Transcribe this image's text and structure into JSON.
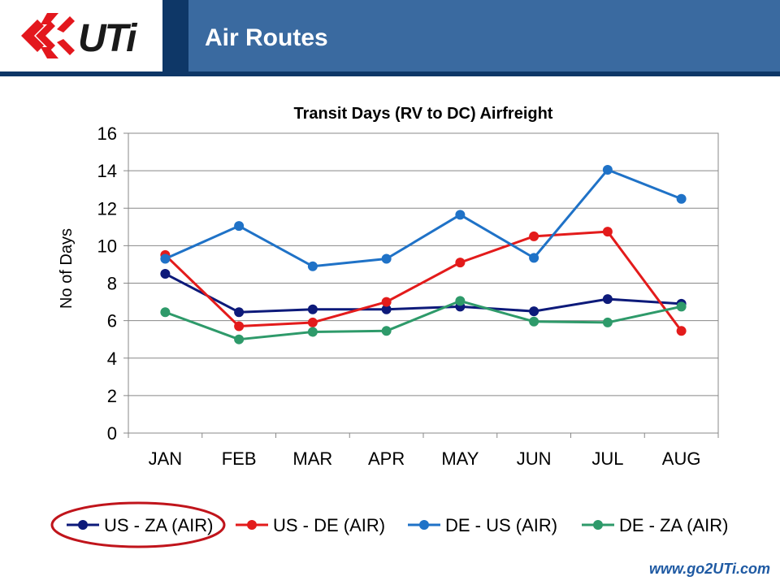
{
  "header": {
    "title": "Air Routes",
    "logo_text": "UTi",
    "colors": {
      "bar": "#3a6aa0",
      "dark": "#0e3767",
      "logo_red": "#e3171d"
    }
  },
  "footer": {
    "url": "www.go2UTi.com"
  },
  "chart_data": {
    "type": "line",
    "title": "Transit Days (RV to DC) Airfreight",
    "xlabel": "",
    "ylabel": "No of Days",
    "categories": [
      "JAN",
      "FEB",
      "MAR",
      "APR",
      "MAY",
      "JUN",
      "JUL",
      "AUG"
    ],
    "ylim": [
      0,
      16
    ],
    "yticks": [
      0,
      2,
      4,
      6,
      8,
      10,
      12,
      14,
      16
    ],
    "grid": true,
    "legend_position": "bottom",
    "series": [
      {
        "name": "US - ZA (AIR)",
        "color": "#0d1a7a",
        "values": [
          8.5,
          6.45,
          6.6,
          6.6,
          6.75,
          6.5,
          7.15,
          6.9
        ]
      },
      {
        "name": "US - DE (AIR)",
        "color": "#e31b1b",
        "values": [
          9.5,
          5.7,
          5.9,
          7.0,
          9.1,
          10.5,
          10.75,
          5.45
        ]
      },
      {
        "name": "DE - US (AIR)",
        "color": "#1f72c7",
        "values": [
          9.3,
          11.05,
          8.9,
          9.3,
          11.65,
          9.35,
          14.05,
          12.5
        ]
      },
      {
        "name": "DE - ZA (AIR)",
        "color": "#2e9a6a",
        "values": [
          6.45,
          5.0,
          5.4,
          5.45,
          7.05,
          5.95,
          5.9,
          6.75
        ]
      }
    ]
  }
}
